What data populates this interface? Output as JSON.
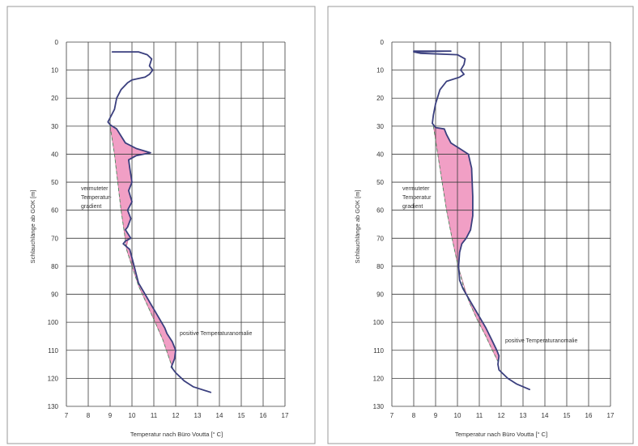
{
  "chart_data": [
    {
      "type": "line",
      "xlabel": "Temperatur nach Büro Voutta [° C]",
      "ylabel": "Schlauchlänge ab GOK [m]",
      "xlim": [
        7,
        17
      ],
      "ylim": [
        0,
        130
      ],
      "y_axis_inverted": true,
      "grid": true,
      "x_ticks": [
        "7",
        "8",
        "9",
        "10",
        "11",
        "12",
        "13",
        "14",
        "15",
        "16",
        "17"
      ],
      "y_ticks": [
        "0",
        "10",
        "20",
        "30",
        "40",
        "50",
        "60",
        "70",
        "80",
        "90",
        "100",
        "110",
        "120",
        "130"
      ],
      "series": [
        {
          "role": "measured",
          "color": "#3a3f7e",
          "points": [
            [
              9.1,
              3.5
            ],
            [
              10.3,
              3.5
            ],
            [
              10.7,
              4.5
            ],
            [
              10.9,
              6
            ],
            [
              10.8,
              8.5
            ],
            [
              10.95,
              10
            ],
            [
              10.8,
              11.5
            ],
            [
              10.6,
              12.5
            ],
            [
              10.0,
              13.5
            ],
            [
              9.8,
              14.5
            ],
            [
              9.5,
              17
            ],
            [
              9.3,
              20
            ],
            [
              9.2,
              24
            ],
            [
              9.0,
              27
            ],
            [
              8.9,
              28.5
            ],
            [
              9.0,
              29.5
            ],
            [
              9.3,
              31
            ],
            [
              9.5,
              33.5
            ],
            [
              9.7,
              36
            ],
            [
              10.2,
              38
            ],
            [
              10.85,
              39.5
            ],
            [
              10.2,
              40.5
            ],
            [
              9.85,
              42
            ],
            [
              9.9,
              45
            ],
            [
              10.0,
              50
            ],
            [
              9.85,
              53
            ],
            [
              10.0,
              57
            ],
            [
              9.8,
              60
            ],
            [
              9.95,
              63
            ],
            [
              9.8,
              66
            ],
            [
              9.7,
              67
            ],
            [
              9.95,
              70
            ],
            [
              9.7,
              71
            ],
            [
              9.6,
              72
            ],
            [
              9.9,
              74
            ],
            [
              10.1,
              80
            ],
            [
              10.3,
              86
            ],
            [
              10.6,
              90
            ],
            [
              10.9,
              94
            ],
            [
              11.2,
              98
            ],
            [
              11.5,
              102
            ],
            [
              11.6,
              104
            ],
            [
              11.85,
              107
            ],
            [
              12.0,
              110
            ],
            [
              11.95,
              113
            ],
            [
              11.8,
              116
            ],
            [
              12.0,
              118
            ],
            [
              12.4,
              121
            ],
            [
              12.8,
              123
            ],
            [
              13.6,
              125
            ]
          ]
        },
        {
          "role": "assumed",
          "color": "#4d8a5f",
          "points": [
            [
              9.0,
              30
            ],
            [
              9.2,
              40
            ],
            [
              9.35,
              50
            ],
            [
              9.5,
              60
            ],
            [
              9.65,
              68
            ],
            [
              9.75,
              74
            ],
            [
              10.0,
              80
            ],
            [
              10.3,
              87
            ],
            [
              10.65,
              93
            ],
            [
              11.0,
              99
            ],
            [
              11.4,
              106
            ],
            [
              11.75,
              114
            ],
            [
              11.9,
              117
            ]
          ]
        }
      ],
      "anomaly_fill_color": "#f19ac2",
      "annotations": [
        "vermuteter",
        "Temperatur-",
        "gradient",
        "positive Temperaturanomalie"
      ]
    },
    {
      "type": "line",
      "xlabel": "Temperatur nach Büro Voutta [° C]",
      "ylabel": "Schlauchlänge ab GOK [m]",
      "xlim": [
        7,
        17
      ],
      "ylim": [
        0,
        130
      ],
      "y_axis_inverted": true,
      "grid": true,
      "x_ticks": [
        "7",
        "8",
        "9",
        "10",
        "11",
        "12",
        "13",
        "14",
        "15",
        "16",
        "17"
      ],
      "y_ticks": [
        "0",
        "10",
        "20",
        "30",
        "40",
        "50",
        "60",
        "70",
        "80",
        "90",
        "100",
        "110",
        "120",
        "130"
      ],
      "series": [
        {
          "role": "measured",
          "color": "#3a3f7e",
          "points": [
            [
              8.0,
              3.2
            ],
            [
              9.7,
              3.2
            ],
            [
              8.0,
              3.5
            ],
            [
              8.3,
              4.0
            ],
            [
              10.0,
              4.5
            ],
            [
              10.35,
              6
            ],
            [
              10.3,
              8
            ],
            [
              10.15,
              10
            ],
            [
              10.3,
              11.5
            ],
            [
              10.1,
              12.5
            ],
            [
              9.5,
              14
            ],
            [
              9.2,
              17
            ],
            [
              9.0,
              22
            ],
            [
              8.9,
              26
            ],
            [
              8.85,
              29
            ],
            [
              9.0,
              30.5
            ],
            [
              9.4,
              31
            ],
            [
              9.5,
              33
            ],
            [
              9.7,
              36
            ],
            [
              10.1,
              38
            ],
            [
              10.5,
              40
            ],
            [
              10.65,
              45
            ],
            [
              10.7,
              55
            ],
            [
              10.7,
              62
            ],
            [
              10.6,
              67
            ],
            [
              10.4,
              70
            ],
            [
              10.2,
              72
            ],
            [
              10.1,
              75
            ],
            [
              10.05,
              80
            ],
            [
              10.1,
              85
            ],
            [
              10.25,
              88
            ],
            [
              10.4,
              90
            ],
            [
              10.7,
              94
            ],
            [
              11.0,
              98
            ],
            [
              11.3,
              102
            ],
            [
              11.55,
              106
            ],
            [
              11.8,
              110
            ],
            [
              11.9,
              112
            ],
            [
              11.85,
              115
            ],
            [
              11.9,
              117
            ],
            [
              12.3,
              120
            ],
            [
              12.7,
              122
            ],
            [
              13.3,
              124
            ]
          ]
        },
        {
          "role": "assumed",
          "color": "#4d8a5f",
          "points": [
            [
              8.9,
              30
            ],
            [
              9.1,
              40
            ],
            [
              9.3,
              50
            ],
            [
              9.5,
              60
            ],
            [
              9.75,
              70
            ],
            [
              10.0,
              79
            ],
            [
              10.3,
              88
            ],
            [
              10.55,
              93
            ],
            [
              10.9,
              99
            ],
            [
              11.3,
              105
            ],
            [
              11.6,
              110
            ],
            [
              11.85,
              114
            ]
          ]
        }
      ],
      "anomaly_fill_color": "#f19ac2",
      "annotations": [
        "vermuteter",
        "Temperatur",
        "gradient",
        "positive Temperaturanomalie"
      ]
    }
  ]
}
